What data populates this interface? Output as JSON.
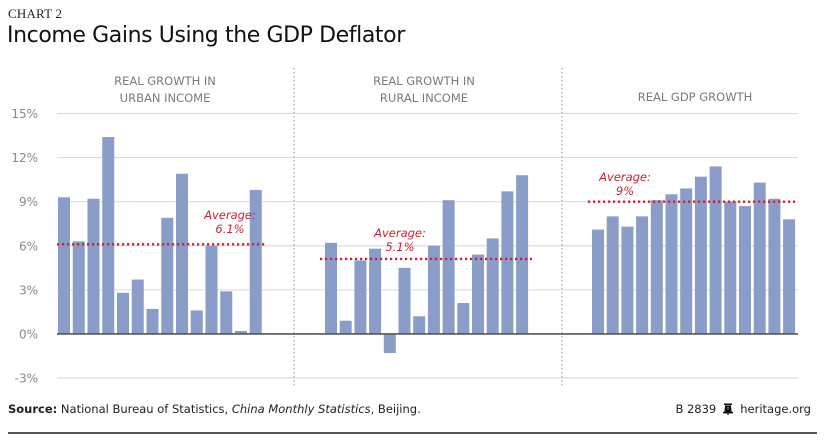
{
  "header": {
    "chart_label": "CHART 2",
    "title": "Income Gains Using the GDP Deflator"
  },
  "footer": {
    "source_label": "Source:",
    "source_text_1": " National Bureau of Statistics, ",
    "source_italic": "China Monthly Statistics",
    "source_text_2": ", Beijing.",
    "report_id": "B 2839",
    "logo_icon": "liberty-bell-icon",
    "site": "heritage.org"
  },
  "colors": {
    "bar": "#8a9dc9",
    "average": "#d0202f",
    "grid": "#dddddd",
    "axis": "#555555",
    "divider": "#999999"
  },
  "chart_data": {
    "type": "bar",
    "title": "Income Gains Using the GDP Deflator",
    "xlabel": "",
    "ylabel": "",
    "ylim": [
      -3,
      15
    ],
    "yticks": [
      15,
      12,
      9,
      6,
      3,
      0,
      -3
    ],
    "ytick_labels": [
      "15%",
      "12%",
      "9%",
      "6%",
      "3%",
      "0%",
      "-3%"
    ],
    "grid": true,
    "panels": [
      {
        "title_lines": [
          "REAL GROWTH IN",
          "URBAN INCOME"
        ],
        "values": [
          9.3,
          6.3,
          9.2,
          13.4,
          2.8,
          3.7,
          1.7,
          7.9,
          10.9,
          1.6,
          6.0,
          2.9,
          0.2,
          9.8
        ],
        "average": 6.1,
        "average_label_lines": [
          "Average:",
          "6.1%"
        ]
      },
      {
        "title_lines": [
          "REAL GROWTH IN",
          "RURAL INCOME"
        ],
        "values": [
          6.2,
          0.9,
          5.0,
          5.8,
          -1.3,
          4.5,
          1.2,
          6.0,
          9.1,
          2.1,
          5.4,
          6.5,
          9.7,
          10.8
        ],
        "average": 5.1,
        "average_label_lines": [
          "Average:",
          "5.1%"
        ]
      },
      {
        "title_lines": [
          "REAL GDP GROWTH"
        ],
        "values": [
          7.1,
          8.0,
          7.3,
          8.0,
          9.1,
          9.5,
          9.9,
          10.7,
          11.4,
          9.0,
          8.7,
          10.3,
          9.2,
          7.8
        ],
        "average": 9.0,
        "average_label_lines": [
          "Average:",
          "9%"
        ]
      }
    ]
  }
}
